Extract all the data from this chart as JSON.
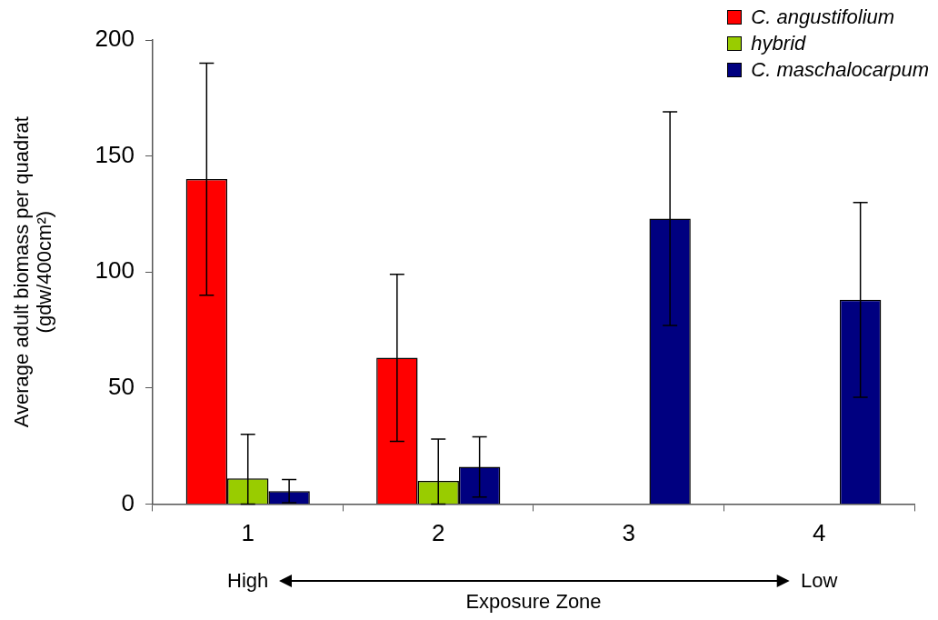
{
  "chart_data": {
    "type": "bar",
    "xlabel": "Exposure Zone",
    "ylabel": "Average adult biomass per quadrat (gdw/400cm²)",
    "categories": [
      "1",
      "2",
      "3",
      "4"
    ],
    "series": [
      {
        "name": "C. angustifolium",
        "color": "#ff0000",
        "values": [
          140,
          63,
          0,
          0
        ],
        "errors": [
          50,
          36,
          null,
          null
        ]
      },
      {
        "name": "hybrid",
        "color": "#99cc00",
        "values": [
          11,
          10,
          0,
          0
        ],
        "errors": [
          [
            0,
            30
          ],
          [
            0,
            28
          ],
          null,
          null
        ]
      },
      {
        "name": "C. maschalocarpum",
        "color": "#000080",
        "values": [
          5.5,
          16,
          123,
          88
        ],
        "errors": [
          5,
          13,
          46,
          42
        ]
      }
    ],
    "ylim": [
      0,
      200
    ],
    "yticks": [
      0,
      50,
      100,
      150,
      200
    ],
    "grid": false,
    "legend": "top right",
    "annotations": [
      "High",
      "Low"
    ]
  }
}
